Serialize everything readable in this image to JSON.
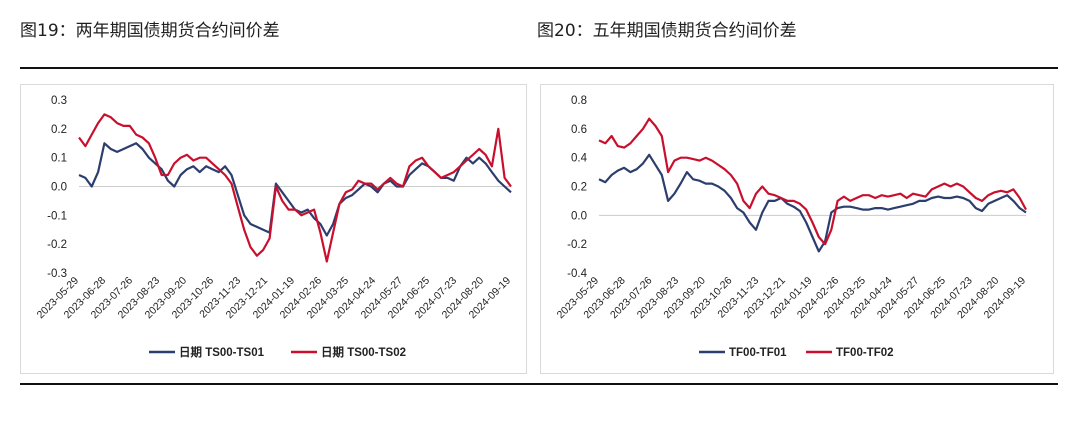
{
  "figures": [
    {
      "title": "图19：两年期国债期货合约间价差"
    },
    {
      "title": "图20：五年期国债期货合约间价差"
    }
  ],
  "colors": {
    "series_navy": "#2c3e6e",
    "series_red": "#c8102e",
    "zero_line": "#cccccc"
  },
  "chart_data": [
    {
      "type": "line",
      "ylim": [
        -0.3,
        0.3
      ],
      "yticks": [
        "0.3",
        "0.2",
        "0.1",
        "0.0",
        "-0.1",
        "-0.2",
        "-0.3"
      ],
      "ytick_values": [
        0.3,
        0.2,
        0.1,
        0.0,
        -0.1,
        -0.2,
        -0.3
      ],
      "x_tick_labels": [
        "2023-05-29",
        "2023-06-28",
        "2023-07-26",
        "2023-08-23",
        "2023-09-20",
        "2023-10-26",
        "2023-11-23",
        "2023-12-21",
        "2024-01-19",
        "2024-02-26",
        "2024-03-25",
        "2024-04-24",
        "2024-05-27",
        "2024-06-25",
        "2024-07-23",
        "2024-08-20",
        "2024-09-19"
      ],
      "legend": "bottom-center",
      "series": [
        {
          "name": "日期 TS00-TS01",
          "color": "#2c3e6e",
          "values": [
            0.04,
            0.03,
            0.0,
            0.05,
            0.15,
            0.13,
            0.12,
            0.13,
            0.14,
            0.15,
            0.13,
            0.1,
            0.08,
            0.06,
            0.02,
            0.0,
            0.04,
            0.06,
            0.07,
            0.05,
            0.07,
            0.06,
            0.05,
            0.07,
            0.04,
            -0.03,
            -0.1,
            -0.13,
            -0.14,
            -0.15,
            -0.16,
            0.01,
            -0.02,
            -0.05,
            -0.08,
            -0.09,
            -0.08,
            -0.11,
            -0.13,
            -0.17,
            -0.13,
            -0.06,
            -0.04,
            -0.03,
            -0.01,
            0.01,
            0.0,
            -0.02,
            0.01,
            0.02,
            0.0,
            0.0,
            0.04,
            0.06,
            0.08,
            0.07,
            0.05,
            0.03,
            0.03,
            0.02,
            0.07,
            0.1,
            0.08,
            0.1,
            0.08,
            0.05,
            0.02,
            0.0,
            -0.02
          ]
        },
        {
          "name": "日期 TS00-TS02",
          "color": "#c8102e",
          "values": [
            0.17,
            0.14,
            0.18,
            0.22,
            0.25,
            0.24,
            0.22,
            0.21,
            0.21,
            0.18,
            0.17,
            0.15,
            0.1,
            0.04,
            0.04,
            0.08,
            0.1,
            0.11,
            0.09,
            0.1,
            0.1,
            0.08,
            0.06,
            0.04,
            0.01,
            -0.07,
            -0.15,
            -0.21,
            -0.24,
            -0.22,
            -0.18,
            0.0,
            -0.05,
            -0.08,
            -0.08,
            -0.1,
            -0.09,
            -0.08,
            -0.16,
            -0.26,
            -0.16,
            -0.06,
            -0.02,
            -0.01,
            0.02,
            0.01,
            0.01,
            -0.01,
            0.01,
            0.03,
            0.01,
            0.0,
            0.07,
            0.09,
            0.1,
            0.07,
            0.05,
            0.03,
            0.04,
            0.05,
            0.07,
            0.09,
            0.11,
            0.13,
            0.11,
            0.07,
            0.2,
            0.03,
            0.0
          ]
        }
      ]
    },
    {
      "type": "line",
      "ylim": [
        -0.4,
        0.8
      ],
      "yticks": [
        "0.8",
        "0.6",
        "0.4",
        "0.2",
        "0.0",
        "-0.2",
        "-0.4"
      ],
      "ytick_values": [
        0.8,
        0.6,
        0.4,
        0.2,
        0.0,
        -0.2,
        -0.4
      ],
      "x_tick_labels": [
        "2023-05-29",
        "2023-06-28",
        "2023-07-26",
        "2023-08-23",
        "2023-09-20",
        "2023-10-26",
        "2023-11-23",
        "2023-12-21",
        "2024-01-19",
        "2024-02-26",
        "2024-03-25",
        "2024-04-24",
        "2024-05-27",
        "2024-06-25",
        "2024-07-23",
        "2024-08-20",
        "2024-09-19"
      ],
      "legend": "bottom-center",
      "series": [
        {
          "name": "TF00-TF01",
          "color": "#2c3e6e",
          "values": [
            0.25,
            0.23,
            0.28,
            0.31,
            0.33,
            0.3,
            0.32,
            0.36,
            0.42,
            0.35,
            0.28,
            0.1,
            0.15,
            0.22,
            0.3,
            0.25,
            0.24,
            0.22,
            0.22,
            0.2,
            0.17,
            0.12,
            0.05,
            0.02,
            -0.05,
            -0.1,
            0.02,
            0.1,
            0.1,
            0.12,
            0.08,
            0.06,
            0.03,
            -0.05,
            -0.15,
            -0.25,
            -0.18,
            0.02,
            0.05,
            0.06,
            0.06,
            0.05,
            0.04,
            0.04,
            0.05,
            0.05,
            0.04,
            0.05,
            0.06,
            0.07,
            0.08,
            0.1,
            0.1,
            0.12,
            0.13,
            0.12,
            0.12,
            0.13,
            0.12,
            0.1,
            0.05,
            0.03,
            0.08,
            0.1,
            0.12,
            0.14,
            0.1,
            0.05,
            0.02
          ]
        },
        {
          "name": "TF00-TF02",
          "color": "#c8102e",
          "values": [
            0.52,
            0.5,
            0.55,
            0.48,
            0.47,
            0.5,
            0.55,
            0.6,
            0.67,
            0.62,
            0.55,
            0.3,
            0.38,
            0.4,
            0.4,
            0.39,
            0.38,
            0.4,
            0.38,
            0.35,
            0.32,
            0.28,
            0.22,
            0.1,
            0.05,
            0.15,
            0.2,
            0.15,
            0.14,
            0.12,
            0.1,
            0.1,
            0.08,
            0.04,
            -0.05,
            -0.15,
            -0.2,
            -0.1,
            0.1,
            0.13,
            0.1,
            0.12,
            0.14,
            0.14,
            0.12,
            0.14,
            0.13,
            0.14,
            0.15,
            0.12,
            0.15,
            0.14,
            0.13,
            0.18,
            0.2,
            0.22,
            0.2,
            0.22,
            0.2,
            0.16,
            0.12,
            0.1,
            0.14,
            0.16,
            0.17,
            0.16,
            0.18,
            0.12,
            0.04
          ]
        }
      ]
    }
  ]
}
